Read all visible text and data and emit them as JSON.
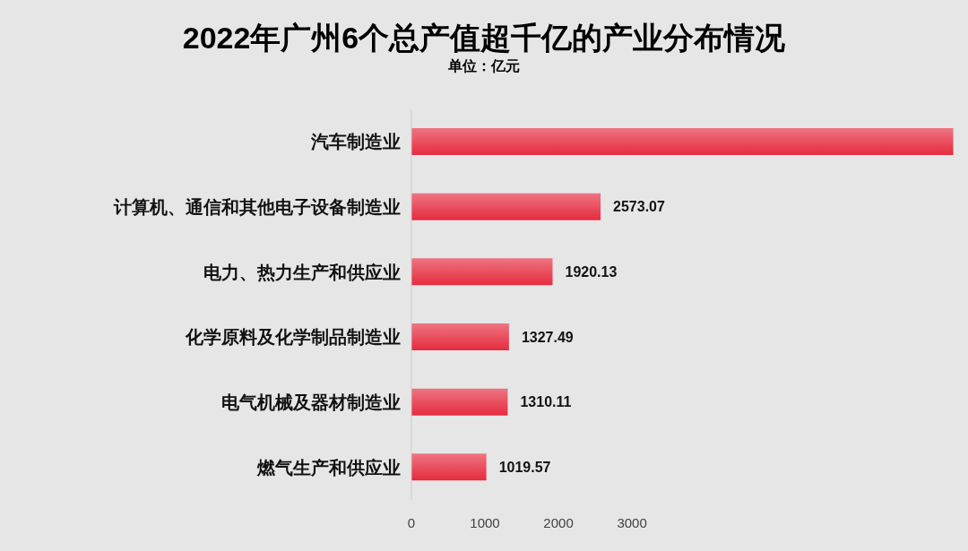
{
  "chart_data": {
    "type": "bar",
    "orientation": "horizontal",
    "title": "2022年广州6个总产值超千亿的产业分布情况",
    "subtitle": "单位：亿元",
    "categories": [
      "汽车制造业",
      "计算机、通信和其他电子设备制造业",
      "电力、热力生产和供应业",
      "化学原料及化学制品制造业",
      "电气机械及器材制造业",
      "燃气生产和供应业"
    ],
    "values": [
      7370,
      2573.07,
      1920.13,
      1327.49,
      1310.11,
      1019.57
    ],
    "value_labels": [
      null,
      "2573.07",
      "1920.13",
      "1327.49",
      "1310.11",
      "1019.57"
    ],
    "color": "#e52b3e",
    "xlim": [
      0,
      7400
    ],
    "xticks": [
      0,
      1000,
      2000,
      3000
    ]
  }
}
